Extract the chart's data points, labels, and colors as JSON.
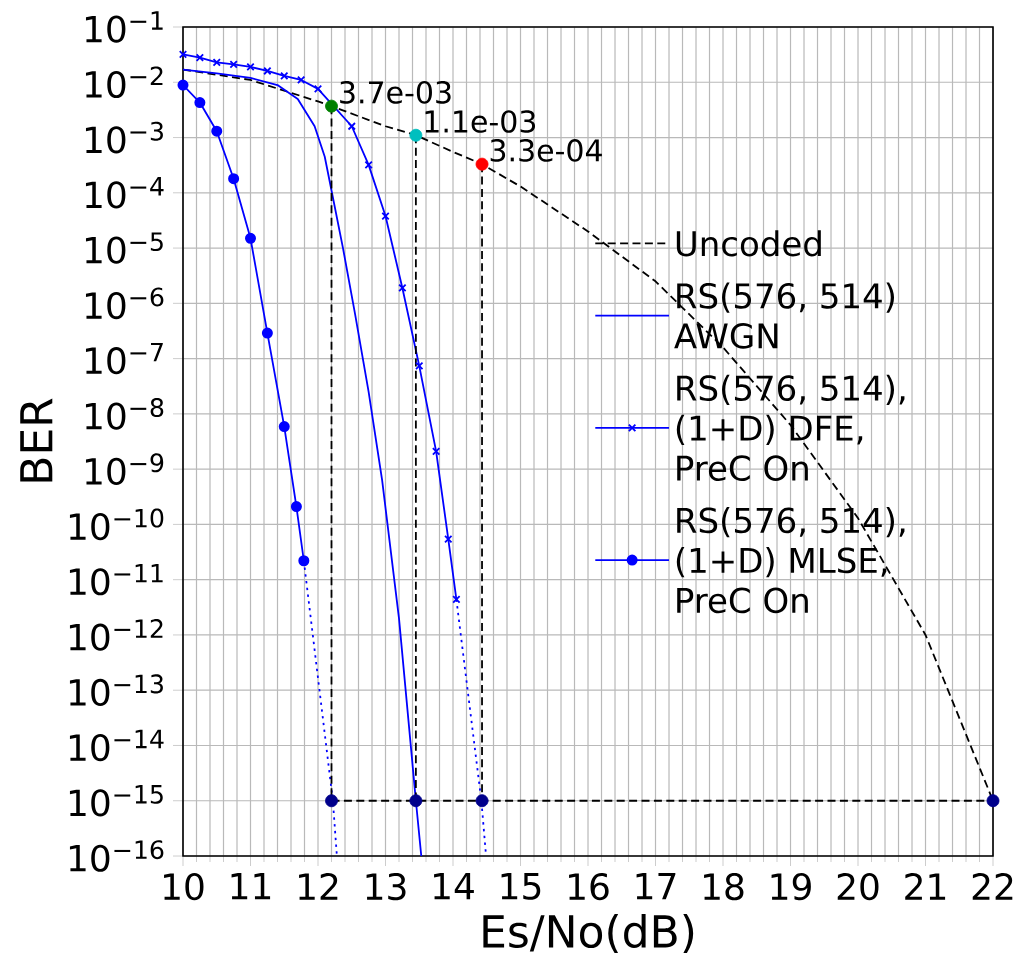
{
  "chart_data": {
    "type": "line",
    "xlabel": "Es/No(dB)",
    "ylabel": "BER",
    "log": "y",
    "grid": true,
    "legend": "right",
    "xlim": [
      10,
      22
    ],
    "xticks": [
      10,
      11,
      12,
      13,
      14,
      15,
      16,
      17,
      18,
      19,
      20,
      21,
      22
    ],
    "ylim": [
      1e-16,
      0.1
    ],
    "yticks": [
      {
        "value": 1e-16,
        "label": "10$^{−16}$"
      },
      {
        "value": 1e-15,
        "label": "10$^{−15}$"
      },
      {
        "value": 1e-14,
        "label": "10$^{−14}$"
      },
      {
        "value": 1e-13,
        "label": "10$^{−13}$"
      },
      {
        "value": 1e-12,
        "label": "10$^{−12}$"
      },
      {
        "value": 1e-11,
        "label": "10$^{−11}$"
      },
      {
        "value": 1e-10,
        "label": "10$^{−10}$"
      },
      {
        "value": 1e-09,
        "label": "10$^{−9}$"
      },
      {
        "value": 1e-08,
        "label": "10$^{−8}$"
      },
      {
        "value": 1e-07,
        "label": "10$^{−7}$"
      },
      {
        "value": 1e-06,
        "label": "10$^{−6}$"
      },
      {
        "value": 1e-05,
        "label": "10$^{−5}$"
      },
      {
        "value": 0.0001,
        "label": "10$^{−4}$"
      },
      {
        "value": 0.001,
        "label": "10$^{−3}$"
      },
      {
        "value": 0.01,
        "label": "10$^{−2}$"
      },
      {
        "value": 0.1,
        "label": "10$^{−1}$"
      }
    ],
    "series": [
      {
        "name": "Uncoded",
        "color": "#000000",
        "line_style": "dashed",
        "marker": "none",
        "x": [
          10,
          11,
          12,
          12.2,
          13,
          13.45,
          14,
          14.43,
          15,
          16,
          17,
          18,
          19,
          20,
          21,
          22
        ],
        "values": [
          0.017,
          0.011,
          0.0045,
          0.0037,
          0.0016,
          0.0011,
          0.00055,
          0.00033,
          0.00013,
          2e-05,
          2.5e-06,
          1.6e-07,
          6.3e-09,
          1.3e-10,
          1e-12,
          1e-15
        ]
      },
      {
        "name": "RS(576, 514) AWGN",
        "color": "#0000ff",
        "line_style": "solid",
        "marker": "none",
        "x": [
          10,
          10.5,
          11,
          11.4,
          11.7,
          11.95,
          12.1,
          12.2,
          12.37,
          12.55,
          12.75,
          12.95,
          13.2,
          13.45,
          13.53
        ],
        "values": [
          0.017,
          0.0145,
          0.012,
          0.0089,
          0.005,
          0.0016,
          0.00045,
          0.00011,
          1e-05,
          6.3e-07,
          2.5e-08,
          6.3e-10,
          2e-12,
          1e-15,
          1e-16
        ]
      },
      {
        "name": "RS(576, 514), (1+D) DFE, PreC On",
        "color": "#0000ff",
        "line_style": "solid",
        "marker": "cross",
        "x": [
          10,
          10.25,
          10.5,
          10.75,
          11,
          11.25,
          11.5,
          11.75,
          12,
          12.5,
          12.75,
          13,
          13.25,
          13.5,
          13.75,
          13.93,
          14.05
        ],
        "values": [
          0.032,
          0.028,
          0.023,
          0.021,
          0.019,
          0.016,
          0.013,
          0.011,
          0.0076,
          0.0016,
          0.00032,
          3.8e-05,
          1.9e-06,
          7.4e-08,
          2.1e-09,
          5.4e-11,
          4.4e-12
        ]
      },
      {
        "name": "RS(576, 514), (1+D) MLSE, PreC On",
        "color": "#0000ff",
        "line_style": "solid",
        "marker": "circle",
        "x": [
          10,
          10.25,
          10.5,
          10.75,
          11,
          11.25,
          11.5,
          11.68,
          11.79
        ],
        "values": [
          0.0089,
          0.0043,
          0.0013,
          0.00018,
          1.5e-05,
          2.9e-07,
          5.9e-09,
          2.1e-10,
          2.2e-11
        ]
      },
      {
        "type": "line",
        "color": "#0000ff",
        "line_style": "dotted",
        "marker": "none",
        "x": [
          14.05,
          14.42,
          14.49
        ],
        "values": [
          4.4e-12,
          1e-15,
          1e-16
        ]
      },
      {
        "type": "line",
        "color": "#0000ff",
        "line_style": "dotted",
        "marker": "none",
        "x": [
          11.79,
          12.22,
          12.28
        ],
        "values": [
          2.2e-11,
          1e-15,
          1e-16
        ]
      },
      {
        "type": "line",
        "color": "#000000",
        "line_style": "dashed",
        "marker": "none",
        "x": [
          12.2,
          12.2
        ],
        "values": [
          0.0037,
          1e-15
        ]
      },
      {
        "type": "line",
        "color": "#000000",
        "line_style": "dashed",
        "marker": "none",
        "x": [
          13.45,
          13.45
        ],
        "values": [
          0.0011,
          1e-15
        ]
      },
      {
        "type": "line",
        "color": "#000000",
        "line_style": "dashed",
        "marker": "none",
        "x": [
          14.43,
          14.43
        ],
        "values": [
          0.00033,
          1e-15
        ]
      },
      {
        "type": "line",
        "color": "#000000",
        "line_style": "dashed",
        "marker": "none",
        "x": [
          12.2,
          22
        ],
        "values": [
          1e-15,
          1e-15
        ]
      },
      {
        "type": "scatter",
        "color": "#00008b",
        "marker": "circle",
        "x": [
          12.2,
          13.45,
          14.43,
          22
        ],
        "values": [
          1e-15,
          1e-15,
          1e-15,
          1e-15
        ]
      },
      {
        "type": "scatter",
        "color": "#008000",
        "marker": "circle",
        "x": [
          12.2
        ],
        "values": [
          0.0037
        ]
      },
      {
        "type": "scatter",
        "color": "#00bfbf",
        "marker": "circle",
        "x": [
          13.45
        ],
        "values": [
          0.0011
        ]
      },
      {
        "type": "scatter",
        "color": "#ff0000",
        "marker": "circle",
        "x": [
          14.43
        ],
        "values": [
          0.00033
        ]
      }
    ],
    "annotations": [
      {
        "text": "3.7e-03",
        "x": 12.2,
        "y": 0.0037
      },
      {
        "text": "1.1e-03",
        "x": 13.45,
        "y": 0.0011
      },
      {
        "text": "3.3e-04",
        "x": 14.43,
        "y": 0.00033
      }
    ]
  }
}
